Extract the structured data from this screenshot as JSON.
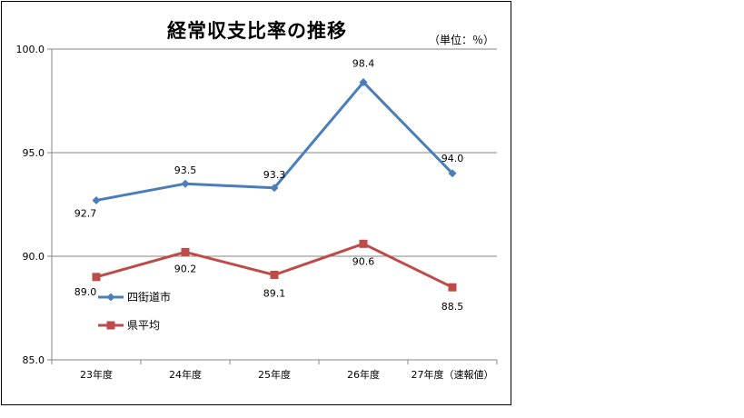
{
  "chart_data": {
    "type": "line",
    "title": "経常収支比率の推移",
    "unit_label": "（単位：％）",
    "categories": [
      "23年度",
      "24年度",
      "25年度",
      "26年度",
      "27年度（速報値）"
    ],
    "ylim": [
      85.0,
      100.0
    ],
    "yticks": [
      "85.0",
      "90.0",
      "95.0",
      "100.0"
    ],
    "ytick_values": [
      85,
      90,
      95,
      100
    ],
    "grid": true,
    "legend_placement": "center-left",
    "series": [
      {
        "name": "四街道市",
        "values": [
          92.7,
          93.5,
          93.3,
          98.4,
          94.0
        ],
        "labels": [
          "92.7",
          "93.5",
          "93.3",
          "98.4",
          "94.0"
        ],
        "color": "#4a7ebb",
        "marker": "diamond"
      },
      {
        "name": "県平均",
        "values": [
          89.0,
          90.2,
          89.1,
          90.6,
          88.5
        ],
        "labels": [
          "89.0",
          "90.2",
          "89.1",
          "90.6",
          "88.5"
        ],
        "color": "#be4b48",
        "marker": "square"
      }
    ]
  }
}
